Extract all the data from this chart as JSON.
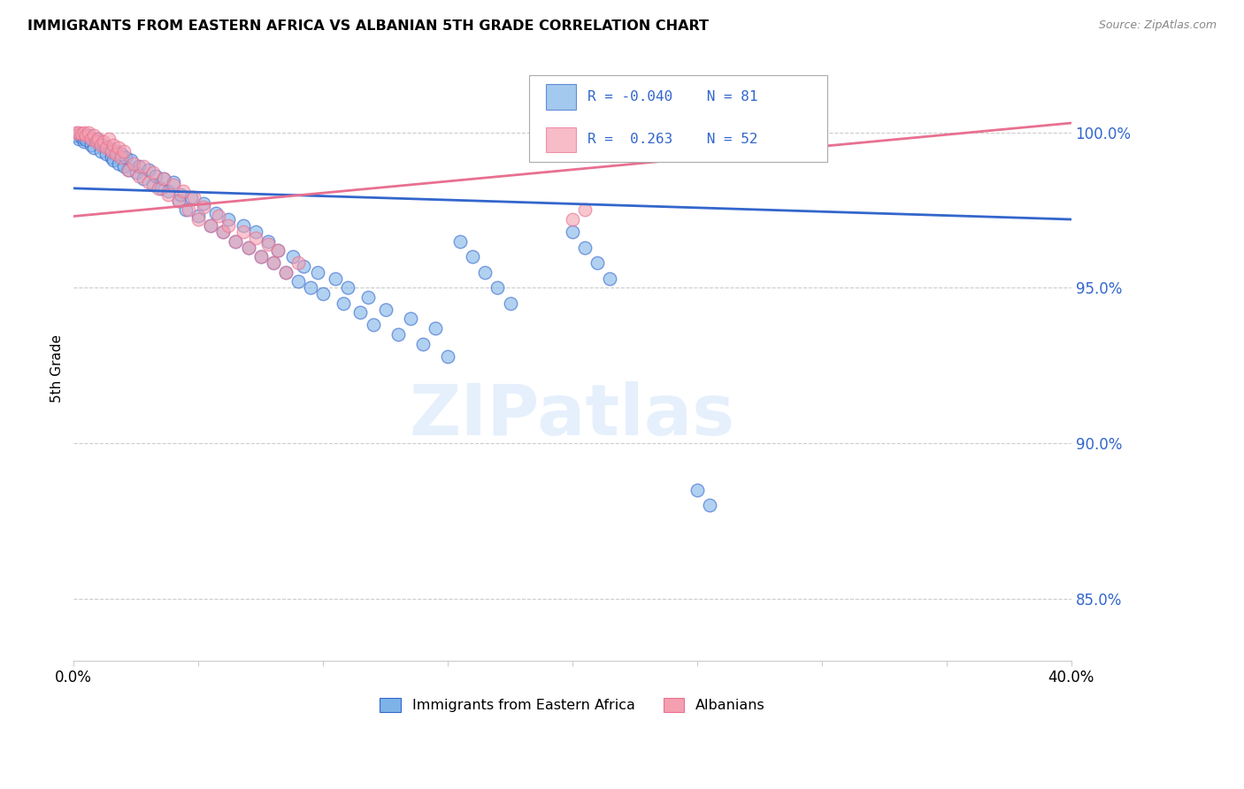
{
  "title": "IMMIGRANTS FROM EASTERN AFRICA VS ALBANIAN 5TH GRADE CORRELATION CHART",
  "source": "Source: ZipAtlas.com",
  "ylabel": "5th Grade",
  "y_ticks": [
    85.0,
    90.0,
    95.0,
    100.0
  ],
  "y_tick_labels": [
    "85.0%",
    "90.0%",
    "95.0%",
    "100.0%"
  ],
  "x_ticks": [
    0.0,
    0.05,
    0.1,
    0.15,
    0.2,
    0.25,
    0.3,
    0.35,
    0.4
  ],
  "xlim": [
    0.0,
    0.4
  ],
  "ylim": [
    83.0,
    101.8
  ],
  "legend_label_blue": "Immigrants from Eastern Africa",
  "legend_label_pink": "Albanians",
  "R_blue": -0.04,
  "N_blue": 81,
  "R_pink": 0.263,
  "N_pink": 52,
  "blue_color": "#7EB3E8",
  "pink_color": "#F4A0B0",
  "blue_line_color": "#3366CC",
  "pink_line_color": "#E87090",
  "blue_line_y0": 98.2,
  "blue_line_y1": 97.2,
  "pink_line_y0": 97.3,
  "pink_line_y1": 100.3,
  "blue_scatter": [
    [
      0.001,
      99.9
    ],
    [
      0.002,
      99.8
    ],
    [
      0.003,
      99.85
    ],
    [
      0.004,
      99.7
    ],
    [
      0.005,
      99.75
    ],
    [
      0.006,
      99.9
    ],
    [
      0.007,
      99.6
    ],
    [
      0.008,
      99.5
    ],
    [
      0.009,
      99.8
    ],
    [
      0.01,
      99.7
    ],
    [
      0.011,
      99.4
    ],
    [
      0.012,
      99.6
    ],
    [
      0.013,
      99.3
    ],
    [
      0.014,
      99.5
    ],
    [
      0.015,
      99.2
    ],
    [
      0.016,
      99.1
    ],
    [
      0.017,
      99.4
    ],
    [
      0.018,
      99.0
    ],
    [
      0.019,
      99.3
    ],
    [
      0.02,
      98.9
    ],
    [
      0.021,
      99.2
    ],
    [
      0.022,
      98.8
    ],
    [
      0.023,
      99.1
    ],
    [
      0.025,
      98.7
    ],
    [
      0.026,
      98.9
    ],
    [
      0.028,
      98.5
    ],
    [
      0.03,
      98.8
    ],
    [
      0.032,
      98.3
    ],
    [
      0.033,
      98.6
    ],
    [
      0.035,
      98.2
    ],
    [
      0.036,
      98.5
    ],
    [
      0.038,
      98.1
    ],
    [
      0.04,
      98.4
    ],
    [
      0.042,
      97.8
    ],
    [
      0.043,
      98.0
    ],
    [
      0.045,
      97.5
    ],
    [
      0.047,
      97.9
    ],
    [
      0.05,
      97.3
    ],
    [
      0.052,
      97.7
    ],
    [
      0.055,
      97.0
    ],
    [
      0.057,
      97.4
    ],
    [
      0.06,
      96.8
    ],
    [
      0.062,
      97.2
    ],
    [
      0.065,
      96.5
    ],
    [
      0.068,
      97.0
    ],
    [
      0.07,
      96.3
    ],
    [
      0.073,
      96.8
    ],
    [
      0.075,
      96.0
    ],
    [
      0.078,
      96.5
    ],
    [
      0.08,
      95.8
    ],
    [
      0.082,
      96.2
    ],
    [
      0.085,
      95.5
    ],
    [
      0.088,
      96.0
    ],
    [
      0.09,
      95.2
    ],
    [
      0.092,
      95.7
    ],
    [
      0.095,
      95.0
    ],
    [
      0.098,
      95.5
    ],
    [
      0.1,
      94.8
    ],
    [
      0.105,
      95.3
    ],
    [
      0.108,
      94.5
    ],
    [
      0.11,
      95.0
    ],
    [
      0.115,
      94.2
    ],
    [
      0.118,
      94.7
    ],
    [
      0.12,
      93.8
    ],
    [
      0.125,
      94.3
    ],
    [
      0.13,
      93.5
    ],
    [
      0.135,
      94.0
    ],
    [
      0.14,
      93.2
    ],
    [
      0.145,
      93.7
    ],
    [
      0.15,
      92.8
    ],
    [
      0.155,
      96.5
    ],
    [
      0.16,
      96.0
    ],
    [
      0.165,
      95.5
    ],
    [
      0.17,
      95.0
    ],
    [
      0.175,
      94.5
    ],
    [
      0.2,
      96.8
    ],
    [
      0.205,
      96.3
    ],
    [
      0.21,
      95.8
    ],
    [
      0.215,
      95.3
    ],
    [
      0.25,
      88.5
    ],
    [
      0.255,
      88.0
    ]
  ],
  "pink_scatter": [
    [
      0.001,
      100.0
    ],
    [
      0.002,
      100.0
    ],
    [
      0.003,
      99.95
    ],
    [
      0.004,
      100.0
    ],
    [
      0.005,
      99.9
    ],
    [
      0.006,
      100.0
    ],
    [
      0.007,
      99.8
    ],
    [
      0.008,
      99.9
    ],
    [
      0.009,
      99.7
    ],
    [
      0.01,
      99.8
    ],
    [
      0.011,
      99.6
    ],
    [
      0.012,
      99.7
    ],
    [
      0.013,
      99.5
    ],
    [
      0.014,
      99.8
    ],
    [
      0.015,
      99.4
    ],
    [
      0.016,
      99.6
    ],
    [
      0.017,
      99.3
    ],
    [
      0.018,
      99.5
    ],
    [
      0.019,
      99.2
    ],
    [
      0.02,
      99.4
    ],
    [
      0.022,
      98.8
    ],
    [
      0.024,
      99.0
    ],
    [
      0.026,
      98.6
    ],
    [
      0.028,
      98.9
    ],
    [
      0.03,
      98.4
    ],
    [
      0.032,
      98.7
    ],
    [
      0.034,
      98.2
    ],
    [
      0.036,
      98.5
    ],
    [
      0.038,
      98.0
    ],
    [
      0.04,
      98.3
    ],
    [
      0.042,
      97.8
    ],
    [
      0.044,
      98.1
    ],
    [
      0.046,
      97.5
    ],
    [
      0.048,
      97.9
    ],
    [
      0.05,
      97.2
    ],
    [
      0.052,
      97.6
    ],
    [
      0.055,
      97.0
    ],
    [
      0.058,
      97.3
    ],
    [
      0.06,
      96.8
    ],
    [
      0.062,
      97.0
    ],
    [
      0.065,
      96.5
    ],
    [
      0.068,
      96.8
    ],
    [
      0.07,
      96.3
    ],
    [
      0.073,
      96.6
    ],
    [
      0.075,
      96.0
    ],
    [
      0.078,
      96.4
    ],
    [
      0.08,
      95.8
    ],
    [
      0.082,
      96.2
    ],
    [
      0.085,
      95.5
    ],
    [
      0.09,
      95.8
    ],
    [
      0.2,
      97.2
    ],
    [
      0.205,
      97.5
    ]
  ]
}
